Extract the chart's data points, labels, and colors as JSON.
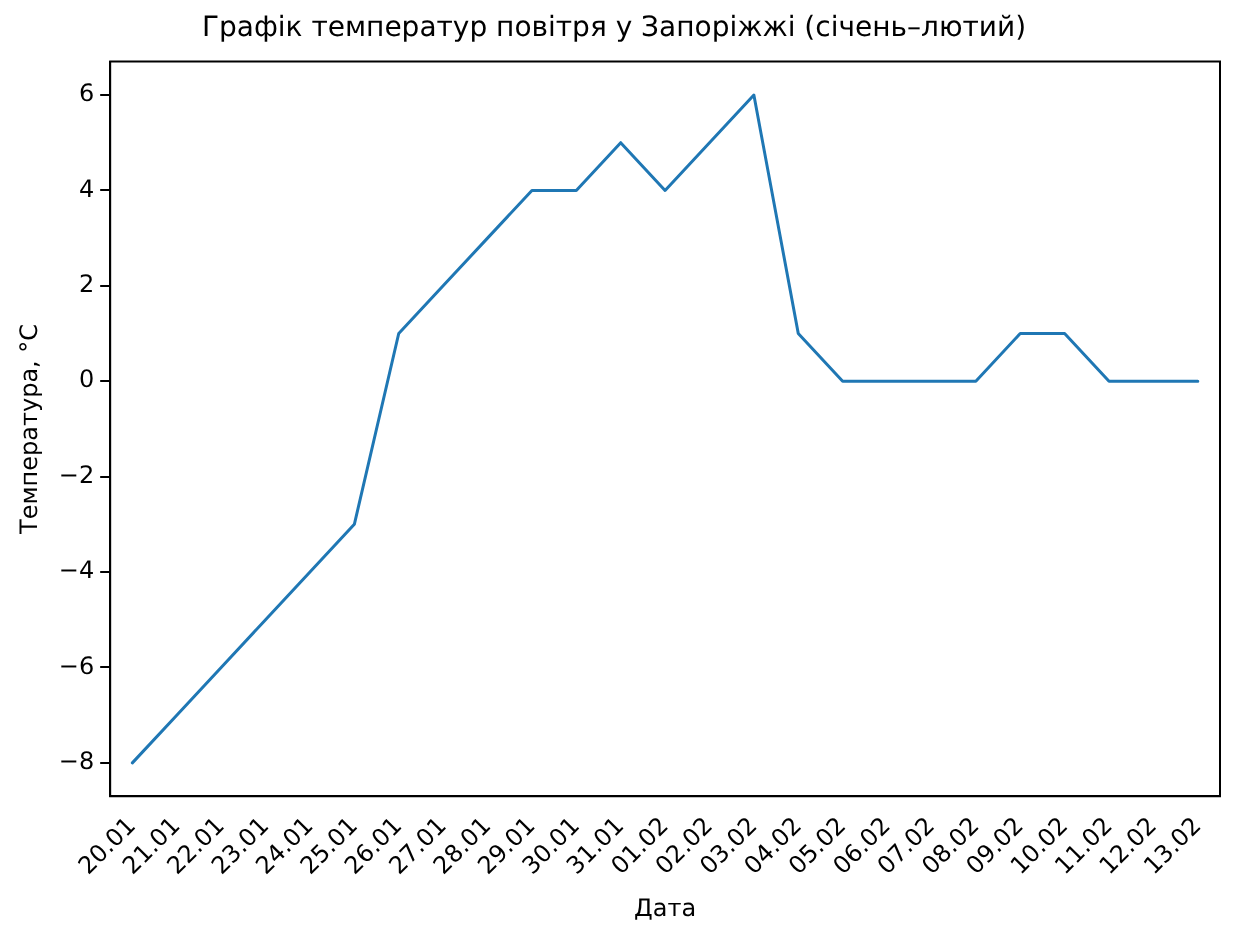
{
  "chart_data": {
    "type": "line",
    "title": "Графік температур повітря у Запоріжжі (січень–лютий)",
    "xlabel": "Дата",
    "ylabel": "Температура, °C",
    "categories": [
      "20.01",
      "21.01",
      "22.01",
      "23.01",
      "24.01",
      "25.01",
      "26.01",
      "27.01",
      "28.01",
      "29.01",
      "30.01",
      "31.01",
      "01.02",
      "02.02",
      "03.02",
      "04.02",
      "05.02",
      "06.02",
      "07.02",
      "08.02",
      "09.02",
      "10.02",
      "11.02",
      "12.02",
      "13.02"
    ],
    "series": [
      {
        "color": "#1f77b4",
        "values": [
          -8,
          -7,
          -6,
          -5,
          -4,
          -3,
          1,
          2,
          3,
          4,
          4,
          5,
          4,
          5,
          6,
          1,
          0,
          0,
          0,
          0,
          1,
          1,
          0,
          0,
          0
        ]
      }
    ],
    "ylim": [
      -8.7,
      6.7
    ],
    "yticks": [
      -8,
      -6,
      -4,
      -2,
      0,
      2,
      4,
      6
    ],
    "grid": false,
    "legend": false,
    "marker": "none",
    "line_style": "solid"
  }
}
